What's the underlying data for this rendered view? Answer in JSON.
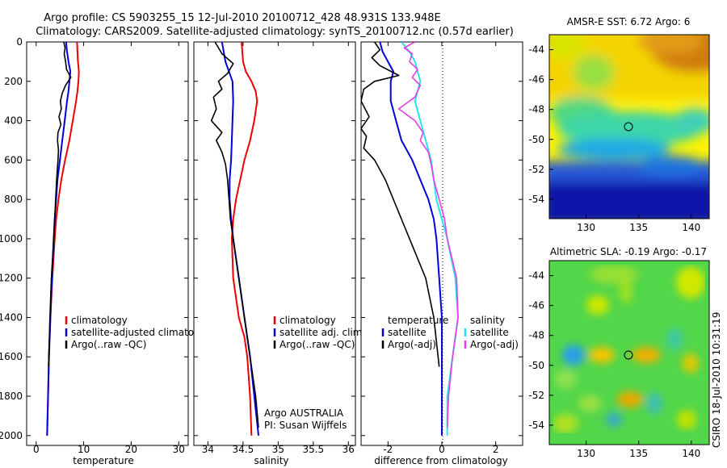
{
  "header": {
    "line1": "Argo profile: CS 5903255_15 12-Jul-2010 20100712_428 48.931S 133.948E",
    "line2": "Climatology: CARS2009. Satellite-adjusted climatology: synTS_20100712.nc (0.57d earlier)"
  },
  "colors": {
    "argo": "#000000",
    "clim": "#ee0000",
    "sat": "#0000dd",
    "cyan": "#22e5ee",
    "magenta": "#e83ce8"
  },
  "chart_data": [
    {
      "type": "line",
      "title": "",
      "xlabel": "temperature",
      "xlim": [
        -2,
        32
      ],
      "ylim": [
        0,
        2050
      ],
      "xticks": [
        "0",
        "10",
        "20",
        "30"
      ],
      "yticks": [
        "0",
        "200",
        "400",
        "600",
        "800",
        "1000",
        "1200",
        "1400",
        "1600",
        "1800",
        "2000"
      ],
      "legend": [
        "climatology",
        "satellite-adjusted climatolog",
        "Argo(..raw -QC)"
      ],
      "series": [
        {
          "name": "climatology",
          "depth": [
            0,
            50,
            100,
            150,
            200,
            250,
            300,
            400,
            500,
            600,
            700,
            800,
            900,
            1000,
            1200,
            1400,
            1600,
            1800,
            2000
          ],
          "values": [
            8.6,
            8.7,
            8.8,
            9.0,
            8.9,
            8.7,
            8.4,
            7.7,
            7.0,
            6.1,
            5.3,
            4.7,
            4.2,
            3.9,
            3.4,
            3.0,
            2.7,
            2.5,
            2.3
          ]
        },
        {
          "name": "satellite-adjusted climatology",
          "depth": [
            0,
            50,
            100,
            150,
            200,
            250,
            300,
            400,
            500,
            600,
            700,
            800,
            900,
            1000,
            1200,
            1400,
            1600,
            1800,
            2000
          ],
          "values": [
            6.3,
            6.5,
            6.8,
            7.2,
            7.0,
            6.8,
            6.5,
            6.0,
            5.5,
            5.0,
            4.5,
            4.2,
            3.9,
            3.7,
            3.3,
            3.0,
            2.7,
            2.5,
            2.3
          ]
        },
        {
          "name": "Argo(..raw -QC)",
          "depth": [
            0,
            30,
            60,
            100,
            140,
            180,
            220,
            260,
            300,
            340,
            380,
            420,
            460,
            500,
            550,
            600,
            700,
            800,
            900,
            1000,
            1200,
            1400,
            1650
          ],
          "values": [
            5.8,
            6.1,
            5.9,
            6.2,
            6.4,
            7.3,
            6.2,
            5.5,
            5.1,
            5.3,
            4.8,
            5.2,
            4.6,
            4.5,
            4.7,
            4.6,
            4.3,
            4.1,
            3.9,
            3.7,
            3.2,
            2.9,
            2.6
          ]
        }
      ]
    },
    {
      "type": "line",
      "title": "",
      "xlabel": "salinity",
      "xlim": [
        33.8,
        36.1
      ],
      "ylim": [
        0,
        2050
      ],
      "xticks": [
        "34",
        "34.5",
        "35",
        "35.5",
        "36"
      ],
      "legend": [
        "climatology",
        "satellite adj. clim.",
        "Argo(..raw -QC)"
      ],
      "annotation": [
        "Argo AUSTRALIA",
        "PI: Susan Wijffels"
      ],
      "series": [
        {
          "name": "climatology",
          "depth": [
            0,
            100,
            150,
            200,
            250,
            300,
            400,
            500,
            600,
            700,
            800,
            900,
            1000,
            1200,
            1400,
            1500,
            1600,
            1800,
            2000
          ],
          "values": [
            34.48,
            34.5,
            34.54,
            34.62,
            34.68,
            34.7,
            34.66,
            34.6,
            34.52,
            34.46,
            34.4,
            34.36,
            34.34,
            34.36,
            34.44,
            34.52,
            34.56,
            34.6,
            34.62
          ]
        },
        {
          "name": "satellite adj. clim.",
          "depth": [
            0,
            100,
            200,
            300,
            400,
            500,
            600,
            700,
            800,
            900,
            1000,
            1200,
            1400,
            1600,
            1800,
            2000
          ],
          "values": [
            34.2,
            34.25,
            34.35,
            34.36,
            34.35,
            34.34,
            34.33,
            34.31,
            34.31,
            34.33,
            34.36,
            34.44,
            34.52,
            34.6,
            34.66,
            34.72
          ]
        },
        {
          "name": "Argo(..raw -QC)",
          "depth": [
            0,
            60,
            110,
            160,
            200,
            240,
            280,
            340,
            400,
            460,
            500,
            560,
            620,
            700,
            800,
            900,
            1000,
            1200,
            1400,
            1600,
            1800,
            1960
          ],
          "values": [
            34.1,
            34.2,
            34.36,
            34.28,
            34.15,
            34.2,
            34.08,
            34.12,
            34.05,
            34.2,
            34.12,
            34.2,
            34.25,
            34.28,
            34.3,
            34.32,
            34.36,
            34.44,
            34.52,
            34.6,
            34.68,
            34.72
          ]
        }
      ]
    },
    {
      "type": "line",
      "title": "",
      "xlabel": "difference from climatology",
      "xlim": [
        -3,
        3
      ],
      "ylim": [
        0,
        2050
      ],
      "xticks": [
        "-2",
        "0",
        "2"
      ],
      "legend_left_title": "temperature",
      "legend_left": [
        "satellite",
        "Argo(-adj)"
      ],
      "legend_right_title": "salinity",
      "legend_right": [
        "satellite",
        "Argo(-adj)"
      ],
      "series": [
        {
          "name": "temperature satellite",
          "depth": [
            0,
            50,
            100,
            150,
            200,
            300,
            400,
            500,
            600,
            700,
            800,
            900,
            1000,
            1200,
            1400,
            1600,
            1800,
            2000
          ],
          "values": [
            -2.3,
            -2.2,
            -2.0,
            -1.8,
            -1.9,
            -1.9,
            -1.7,
            -1.5,
            -1.1,
            -0.8,
            -0.5,
            -0.3,
            -0.2,
            -0.1,
            0,
            0,
            0,
            0
          ]
        },
        {
          "name": "temperature Argo(-adj)",
          "depth": [
            0,
            40,
            80,
            120,
            170,
            200,
            240,
            300,
            380,
            440,
            480,
            540,
            600,
            700,
            800,
            900,
            1000,
            1200,
            1400,
            1650
          ],
          "values": [
            -2.5,
            -2.3,
            -2.6,
            -2.3,
            -1.6,
            -2.5,
            -2.9,
            -3.0,
            -2.7,
            -3.0,
            -2.8,
            -2.9,
            -2.5,
            -2.1,
            -1.8,
            -1.5,
            -1.2,
            -0.6,
            -0.3,
            -0.1
          ]
        },
        {
          "name": "salinity satellite",
          "depth": [
            0,
            50,
            100,
            150,
            200,
            300,
            400,
            500,
            600,
            700,
            800,
            900,
            1000,
            1200,
            1400,
            1600,
            1800,
            2000
          ],
          "values": [
            -1.5,
            -1.2,
            -1.0,
            -0.9,
            -0.8,
            -1.0,
            -0.8,
            -0.6,
            -0.4,
            -0.3,
            -0.2,
            0,
            0.2,
            0.5,
            0.6,
            0.4,
            0.2,
            0.2
          ]
        },
        {
          "name": "salinity Argo(-adj)",
          "depth": [
            0,
            30,
            60,
            100,
            140,
            180,
            220,
            280,
            340,
            400,
            460,
            500,
            560,
            620,
            700,
            800,
            900,
            1000,
            1200,
            1400,
            1600,
            1800,
            1960
          ],
          "values": [
            -1.0,
            -1.4,
            -1.1,
            -1.2,
            -0.9,
            -1.1,
            -0.8,
            -1.0,
            -1.6,
            -1.0,
            -0.7,
            -0.8,
            -0.5,
            -0.4,
            -0.3,
            -0.1,
            0.1,
            0.2,
            0.55,
            0.6,
            0.4,
            0.25,
            0.2
          ]
        }
      ]
    },
    {
      "type": "heatmap",
      "title": "AMSR-E SST: 6.72 Argo: 6",
      "xticks": [
        "130",
        "135",
        "140"
      ],
      "yticks": [
        "-44",
        "-46",
        "-48",
        "-50",
        "-52",
        "-54"
      ],
      "marker": {
        "lon": 133.948,
        "lat": -48.931
      }
    },
    {
      "type": "heatmap",
      "title": "Altimetric SLA: -0.19 Argo: -0.17",
      "xticks": [
        "130",
        "135",
        "140"
      ],
      "yticks": [
        "-44",
        "-46",
        "-48",
        "-50",
        "-52",
        "-54"
      ],
      "marker": {
        "lon": 133.948,
        "lat": -48.931
      }
    }
  ],
  "footer": {
    "credit": "CSIRO 18-Jul-2010 10:31:19"
  }
}
